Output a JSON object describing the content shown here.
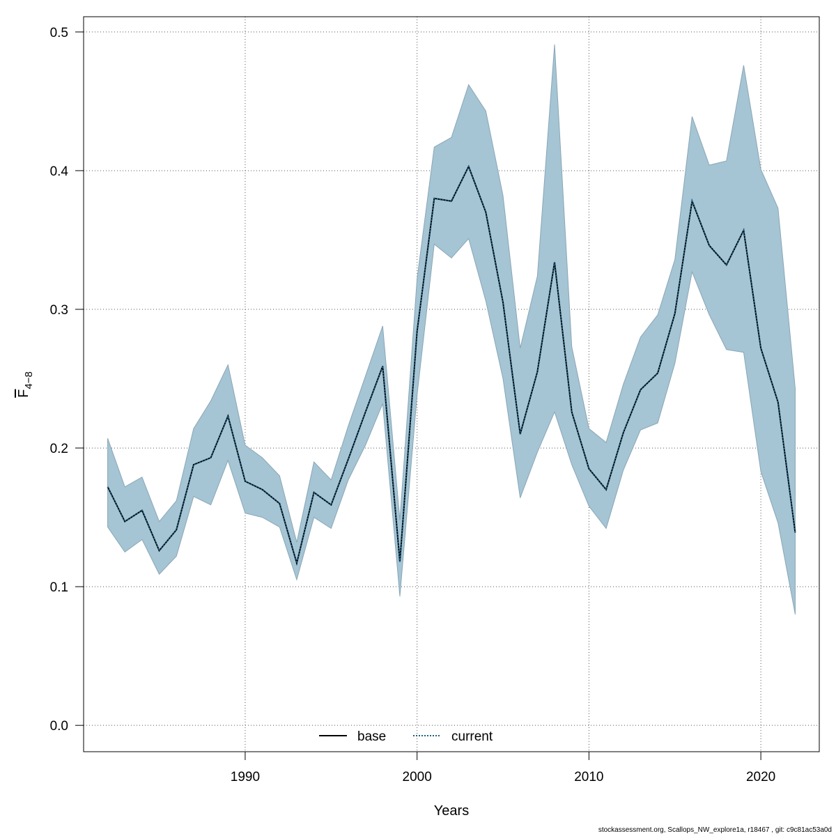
{
  "chart_data": {
    "type": "line",
    "ylabel_main": "F",
    "ylabel_sub": "4−8",
    "xlabel": "Years",
    "xlim": [
      1980.6,
      2023.4
    ],
    "ylim": [
      -0.019,
      0.511
    ],
    "x_ticks": [
      1990,
      2000,
      2010,
      2020
    ],
    "y_ticks": [
      "0.0",
      "0.1",
      "0.2",
      "0.3",
      "0.4",
      "0.5"
    ],
    "grid": true,
    "legend_position": "bottom",
    "colors": {
      "band": "#a5c4d4",
      "band_edge": "#8aa7b6",
      "base": "#000000",
      "current": "#1f5f80",
      "grid": "#555555"
    },
    "x": [
      1982,
      1983,
      1984,
      1985,
      1986,
      1987,
      1988,
      1989,
      1990,
      1991,
      1992,
      1993,
      1994,
      1995,
      1996,
      1997,
      1998,
      1999,
      2000,
      2001,
      2002,
      2003,
      2004,
      2005,
      2006,
      2007,
      2008,
      2009,
      2010,
      2011,
      2012,
      2013,
      2014,
      2015,
      2016,
      2017,
      2018,
      2019,
      2020,
      2021,
      2022
    ],
    "series": [
      {
        "name": "base",
        "style": "solid",
        "values": [
          0.172,
          0.147,
          0.155,
          0.126,
          0.141,
          0.188,
          0.193,
          0.223,
          0.176,
          0.17,
          0.16,
          0.117,
          0.168,
          0.159,
          0.192,
          0.226,
          0.259,
          0.118,
          0.284,
          0.38,
          0.378,
          0.403,
          0.37,
          0.305,
          0.21,
          0.255,
          0.334,
          0.226,
          0.185,
          0.17,
          0.211,
          0.242,
          0.254,
          0.297,
          0.378,
          0.346,
          0.332,
          0.357,
          0.272,
          0.233,
          0.139
        ]
      },
      {
        "name": "current",
        "style": "dotted",
        "values": [
          0.172,
          0.147,
          0.155,
          0.126,
          0.141,
          0.188,
          0.193,
          0.223,
          0.176,
          0.17,
          0.16,
          0.117,
          0.168,
          0.159,
          0.192,
          0.226,
          0.259,
          0.118,
          0.284,
          0.38,
          0.378,
          0.403,
          0.37,
          0.305,
          0.21,
          0.255,
          0.334,
          0.226,
          0.185,
          0.17,
          0.211,
          0.242,
          0.254,
          0.297,
          0.378,
          0.346,
          0.332,
          0.357,
          0.272,
          0.233,
          0.139
        ]
      }
    ],
    "band": {
      "lower": [
        0.143,
        0.125,
        0.134,
        0.109,
        0.122,
        0.165,
        0.159,
        0.191,
        0.153,
        0.15,
        0.143,
        0.105,
        0.15,
        0.142,
        0.177,
        0.202,
        0.232,
        0.093,
        0.238,
        0.347,
        0.337,
        0.351,
        0.306,
        0.25,
        0.164,
        0.197,
        0.226,
        0.188,
        0.158,
        0.142,
        0.184,
        0.213,
        0.218,
        0.261,
        0.327,
        0.296,
        0.271,
        0.269,
        0.183,
        0.146,
        0.08
      ],
      "upper": [
        0.207,
        0.172,
        0.179,
        0.147,
        0.162,
        0.214,
        0.234,
        0.26,
        0.202,
        0.193,
        0.18,
        0.132,
        0.19,
        0.177,
        0.216,
        0.252,
        0.288,
        0.148,
        0.322,
        0.417,
        0.424,
        0.462,
        0.443,
        0.382,
        0.272,
        0.324,
        0.491,
        0.273,
        0.214,
        0.204,
        0.246,
        0.28,
        0.296,
        0.336,
        0.439,
        0.404,
        0.407,
        0.476,
        0.401,
        0.373,
        0.243
      ]
    }
  },
  "footer": "stockassessment.org, Scallops_NW_explore1a, r18467 , git: c9c81ac53a0d"
}
